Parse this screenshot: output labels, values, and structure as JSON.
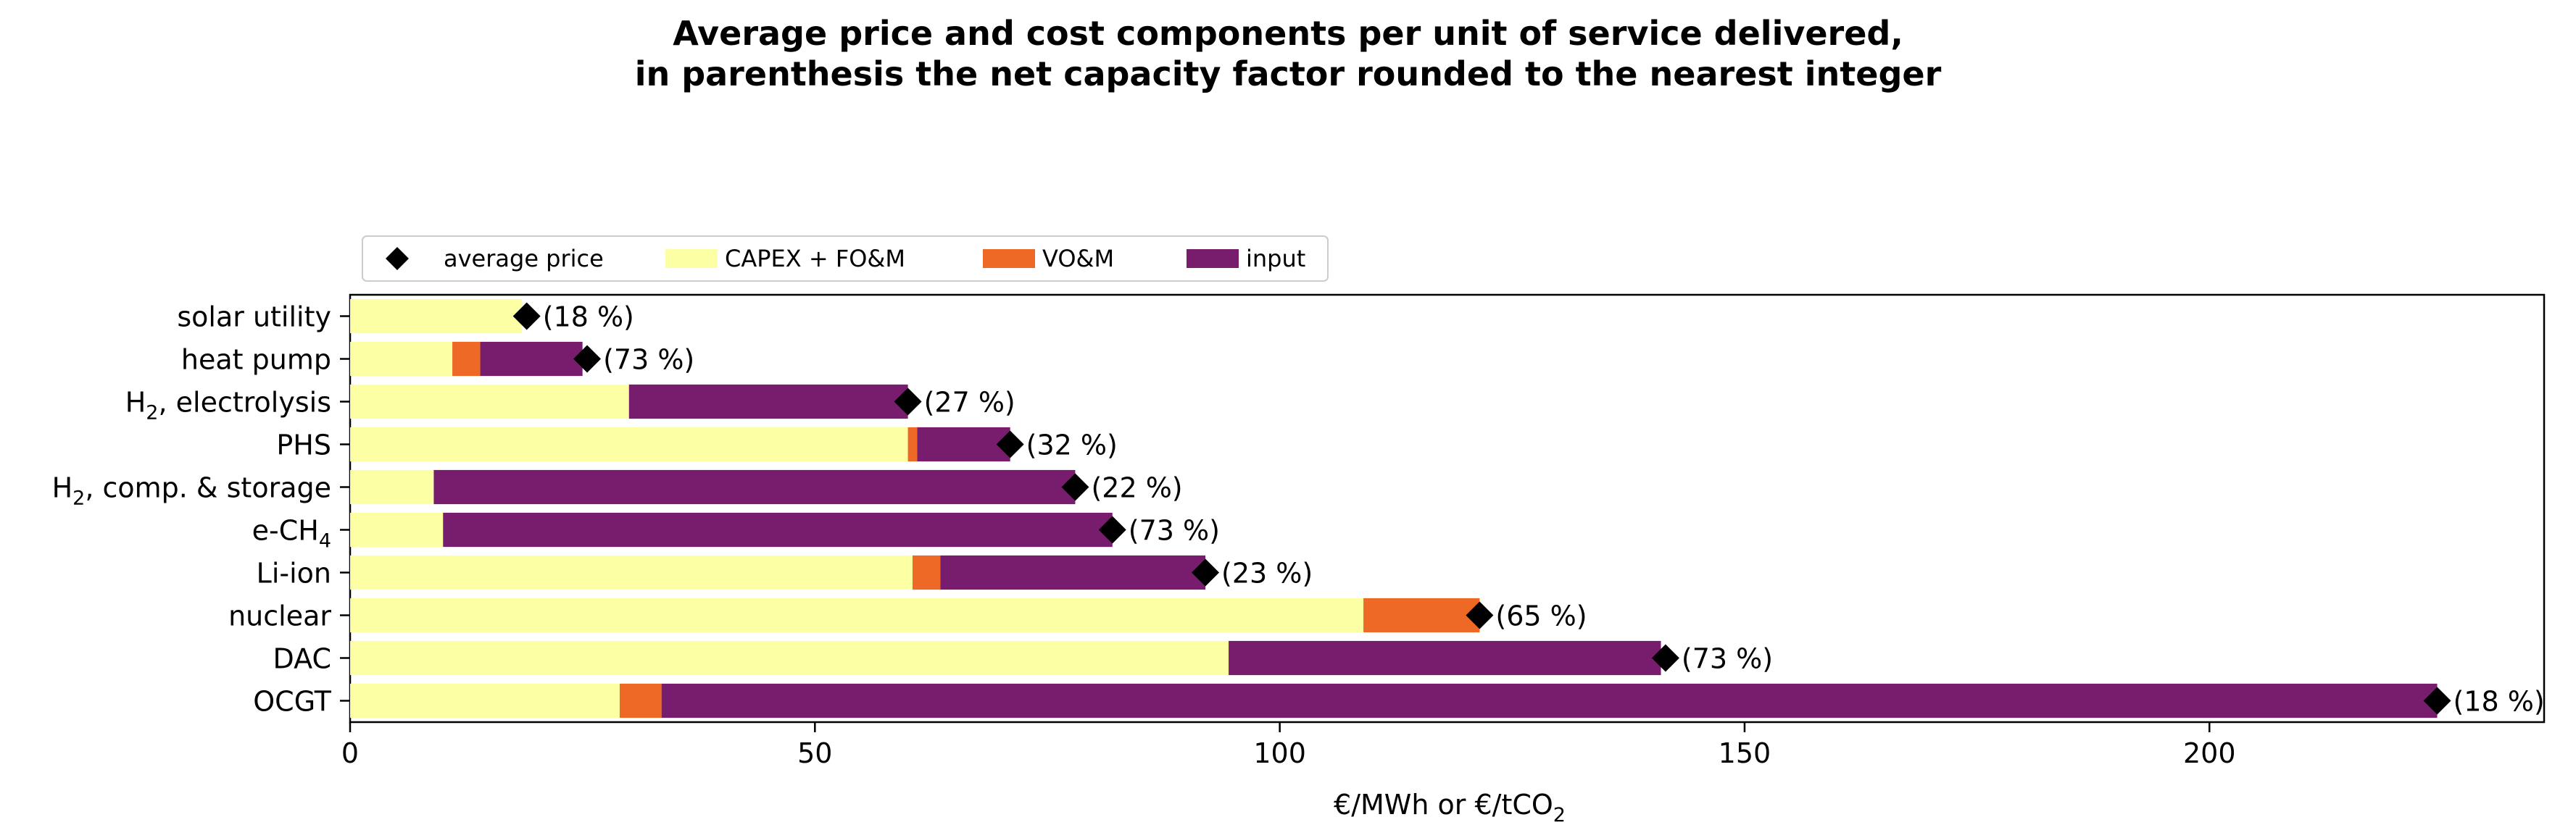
{
  "chart_data": {
    "type": "bar",
    "orientation": "horizontal",
    "stacked": true,
    "title_lines": [
      "Average price and cost components per unit of service delivered,",
      "in parenthesis the net capacity factor rounded to the nearest integer"
    ],
    "xlabel": "€/MWh or €/tCO",
    "xlabel_subscript": "2",
    "ylabel": "",
    "xlim": [
      0,
      236
    ],
    "xticks": [
      0,
      50,
      100,
      150,
      200
    ],
    "grid": false,
    "legend_position": "above plot, left, horizontal",
    "legend": [
      {
        "label": "average price",
        "kind": "marker",
        "color": "#000000"
      },
      {
        "label": "CAPEX + FO&M",
        "kind": "bar",
        "color": "#fcffa4"
      },
      {
        "label": "VO&M",
        "kind": "bar",
        "color": "#ed6925"
      },
      {
        "label": "input",
        "kind": "bar",
        "color": "#781c6d"
      }
    ],
    "categories": [
      {
        "base": "solar utility",
        "sub": "",
        "tail": ""
      },
      {
        "base": "heat pump",
        "sub": "",
        "tail": ""
      },
      {
        "base": "H",
        "sub": "2",
        "tail": ", electrolysis"
      },
      {
        "base": "PHS",
        "sub": "",
        "tail": ""
      },
      {
        "base": "H",
        "sub": "2",
        "tail": ", comp. & storage"
      },
      {
        "base": "e-CH",
        "sub": "4",
        "tail": ""
      },
      {
        "base": "Li-ion",
        "sub": "",
        "tail": ""
      },
      {
        "base": "nuclear",
        "sub": "",
        "tail": ""
      },
      {
        "base": "DAC",
        "sub": "",
        "tail": ""
      },
      {
        "base": "OCGT",
        "sub": "",
        "tail": ""
      }
    ],
    "series": [
      {
        "name": "CAPEX + FO&M",
        "color": "#fcffa4",
        "values": [
          18.5,
          11,
          30,
          60,
          9,
          10,
          60.5,
          109,
          94.5,
          29
        ]
      },
      {
        "name": "VO&M",
        "color": "#ed6925",
        "values": [
          0,
          3,
          0,
          1,
          0,
          0,
          3,
          12.5,
          0,
          4.5
        ]
      },
      {
        "name": "input",
        "color": "#781c6d",
        "values": [
          0,
          11,
          30,
          10,
          69,
          72,
          28.5,
          0,
          46.5,
          191
        ]
      }
    ],
    "average_price": [
      19,
      25.5,
      60,
      71,
      78,
      82,
      92,
      121.5,
      141.5,
      224.5
    ],
    "capacity_factor_labels": [
      "(18 %)",
      "(73 %)",
      "(27 %)",
      "(32 %)",
      "(22 %)",
      "(73 %)",
      "(23 %)",
      "(65 %)",
      "(73 %)",
      "(18 %)"
    ]
  }
}
